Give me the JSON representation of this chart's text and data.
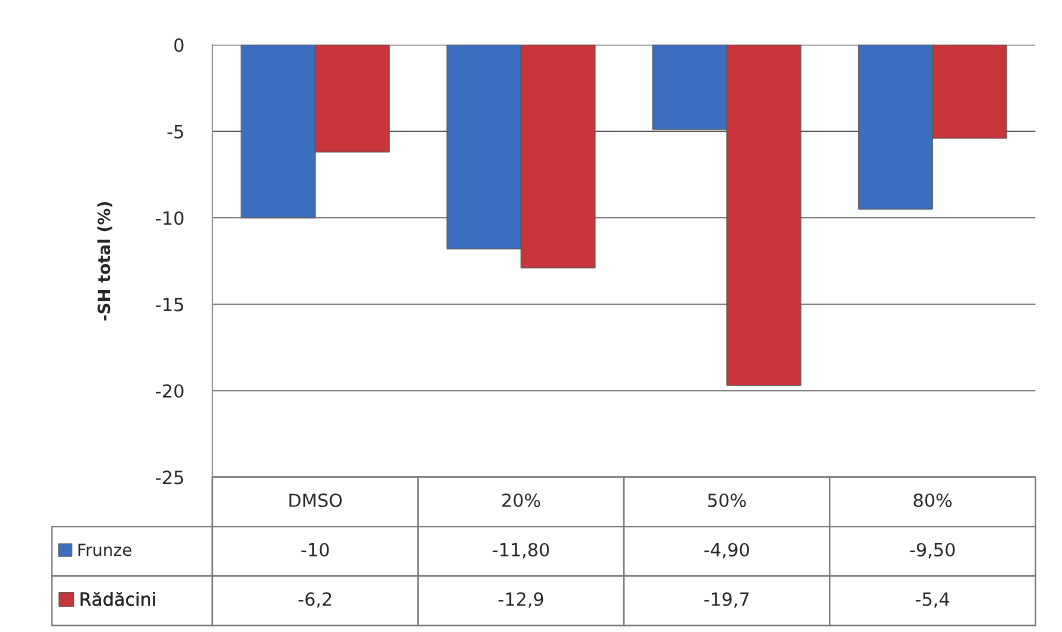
{
  "chart_data": {
    "type": "bar",
    "ylabel": "-SH total (%)",
    "categories": [
      "DMSO",
      "20%",
      "50%",
      "80%"
    ],
    "series": [
      {
        "name": "Frunze",
        "color": "#3d6fc0",
        "values": [
          -10,
          -11.8,
          -4.9,
          -9.5
        ],
        "value_labels": [
          "-10",
          "-11,80",
          "-4,90",
          "-9,50"
        ]
      },
      {
        "name": "Rădăcini",
        "color": "#c8353a",
        "values": [
          -6.2,
          -12.9,
          -19.7,
          -5.4
        ],
        "value_labels": [
          "-6,2",
          "-12,9",
          "-19,7",
          "-5,4"
        ]
      }
    ],
    "ylim": [
      -25,
      0
    ],
    "yticks": [
      0,
      -5,
      -10,
      -15,
      -20,
      -25
    ],
    "grid": "y",
    "legend": "bottom"
  }
}
